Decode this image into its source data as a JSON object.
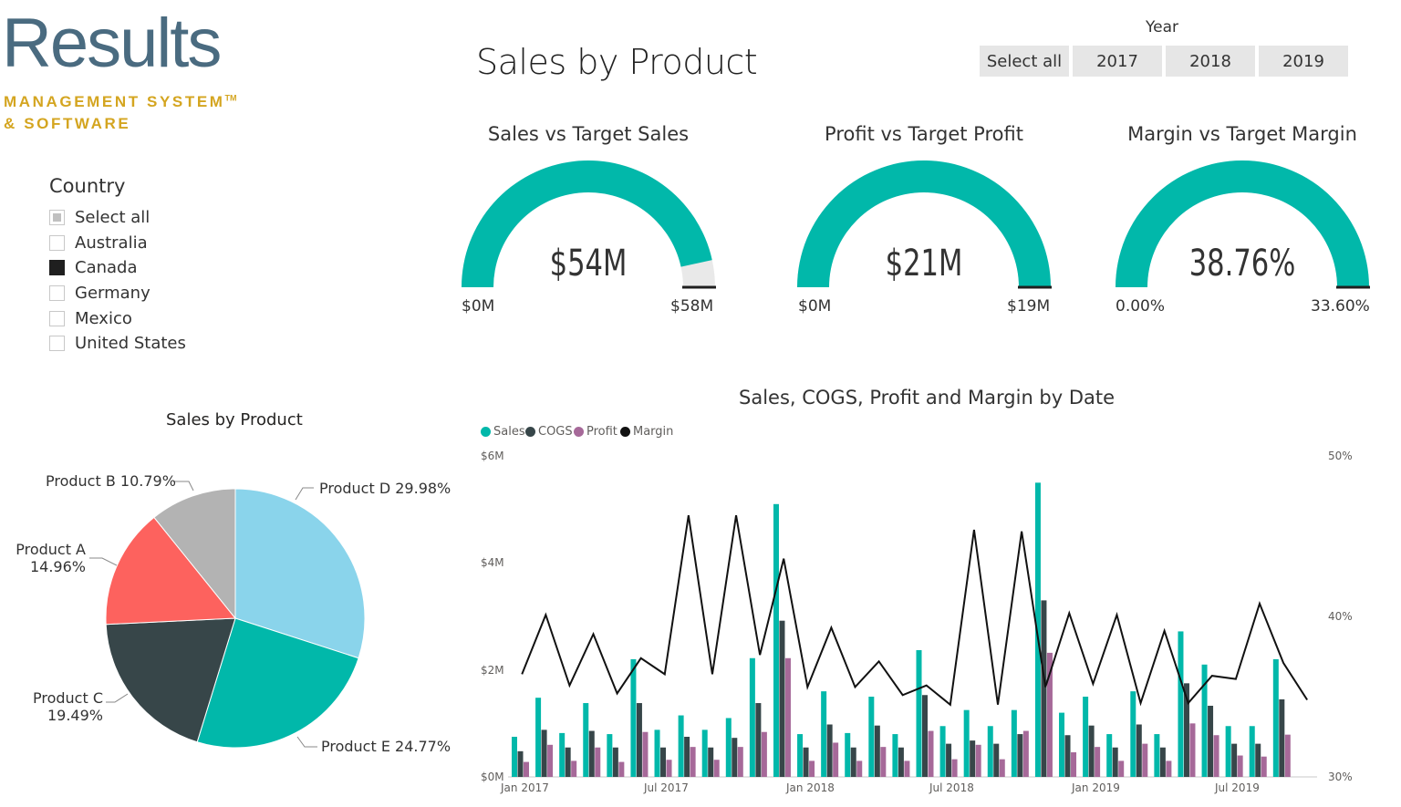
{
  "logo": {
    "word": "Results",
    "line1": "MANAGEMENT SYSTEM",
    "tm": "TM",
    "line2": "& SOFTWARE"
  },
  "page_title": "Sales by Product",
  "year_slicer": {
    "title": "Year",
    "options": [
      "Select all",
      "2017",
      "2018",
      "2019"
    ]
  },
  "country_slicer": {
    "title": "Country",
    "items": [
      {
        "label": "Select all",
        "state": "partial"
      },
      {
        "label": "Australia",
        "state": "unchecked"
      },
      {
        "label": "Canada",
        "state": "checked"
      },
      {
        "label": "Germany",
        "state": "unchecked"
      },
      {
        "label": "Mexico",
        "state": "unchecked"
      },
      {
        "label": "United States",
        "state": "unchecked"
      }
    ]
  },
  "colors": {
    "teal": "#01b8aa",
    "dark": "#374649",
    "purple": "#a66999",
    "line": "#111111",
    "gauge_bg": "#e9e9e9",
    "red": "#fd625e",
    "gray": "#b3b3b3",
    "lightblue": "#8ad4eb"
  },
  "gauges": [
    {
      "title": "Sales vs Target Sales",
      "value": "$54M",
      "min": "$0M",
      "max": "$58M",
      "fill_fraction": 0.931,
      "target_fraction": 1.0
    },
    {
      "title": "Profit vs Target Profit",
      "value": "$21M",
      "min": "$0M",
      "max": "$19M",
      "fill_fraction": 1.0,
      "target_fraction": 1.0
    },
    {
      "title": "Margin vs Target Margin",
      "value": "38.76%",
      "min": "0.00%",
      "max": "33.60%",
      "fill_fraction": 1.0,
      "target_fraction": 1.0
    }
  ],
  "chart_data": [
    {
      "type": "pie",
      "title": "Sales by Product",
      "slices": [
        {
          "label": "Product D",
          "pct_text": "29.98%",
          "value": 29.98,
          "color": "#8ad4eb"
        },
        {
          "label": "Product E",
          "pct_text": "24.77%",
          "value": 24.77,
          "color": "#01b8aa"
        },
        {
          "label": "Product C",
          "pct_text": "19.49%",
          "value": 19.49,
          "color": "#374649"
        },
        {
          "label": "Product A",
          "pct_text": "14.96%",
          "value": 14.96,
          "color": "#fd625e"
        },
        {
          "label": "Product B",
          "pct_text": "10.79%",
          "value": 10.79,
          "color": "#b3b3b3"
        }
      ]
    },
    {
      "type": "bar",
      "title": "Sales, COGS, Profit and Margin by Date",
      "legend": [
        "Sales",
        "COGS",
        "Profit",
        "Margin"
      ],
      "x_ticks": [
        "Jan 2017",
        "Jul 2017",
        "Jan 2018",
        "Jul 2018",
        "Jan 2019",
        "Jul 2019"
      ],
      "y_ticks": [
        "$6M",
        "$4M",
        "$2M",
        "$0M"
      ],
      "y2_ticks": [
        "50%",
        "40%",
        "30%"
      ],
      "ylim": [
        0,
        6
      ],
      "y2lim": [
        30,
        50
      ],
      "periods": 34,
      "series": [
        {
          "name": "Sales",
          "color": "#01b8aa",
          "values": [
            0.75,
            1.48,
            0.82,
            1.38,
            0.8,
            2.2,
            0.88,
            1.15,
            0.88,
            1.1,
            2.22,
            5.1,
            0.8,
            1.6,
            0.82,
            1.5,
            0.8,
            2.37,
            0.95,
            1.25,
            0.95,
            1.25,
            5.5,
            1.2,
            1.5,
            0.8,
            1.6,
            0.8,
            2.72,
            2.1,
            0.95,
            0.95,
            2.2,
            0.0
          ]
        },
        {
          "name": "COGS",
          "color": "#374649",
          "values": [
            0.48,
            0.88,
            0.55,
            0.86,
            0.55,
            1.38,
            0.55,
            0.75,
            0.55,
            0.73,
            1.38,
            2.92,
            0.55,
            0.98,
            0.55,
            0.96,
            0.55,
            1.53,
            0.62,
            0.68,
            0.62,
            0.8,
            3.3,
            0.78,
            0.96,
            0.55,
            0.98,
            0.55,
            1.75,
            1.33,
            0.62,
            0.62,
            1.45,
            0.0
          ]
        },
        {
          "name": "Profit",
          "color": "#a66999",
          "values": [
            0.28,
            0.6,
            0.3,
            0.55,
            0.28,
            0.84,
            0.32,
            0.56,
            0.32,
            0.56,
            0.84,
            2.22,
            0.3,
            0.64,
            0.3,
            0.56,
            0.3,
            0.86,
            0.33,
            0.6,
            0.33,
            0.86,
            2.32,
            0.46,
            0.56,
            0.3,
            0.62,
            0.3,
            1.0,
            0.78,
            0.4,
            0.38,
            0.79,
            0.0
          ]
        },
        {
          "name": "Margin",
          "color": "#111111",
          "values": [
            36.4,
            40.1,
            35.7,
            38.9,
            35.2,
            37.4,
            36.4,
            46.3,
            36.4,
            46.3,
            37.6,
            43.6,
            35.6,
            39.3,
            35.6,
            37.2,
            35.1,
            35.7,
            34.5,
            45.4,
            34.5,
            45.3,
            35.6,
            40.2,
            35.8,
            40.1,
            34.6,
            39.1,
            34.6,
            36.3,
            36.1,
            40.8,
            37.1,
            34.8
          ]
        }
      ]
    }
  ]
}
